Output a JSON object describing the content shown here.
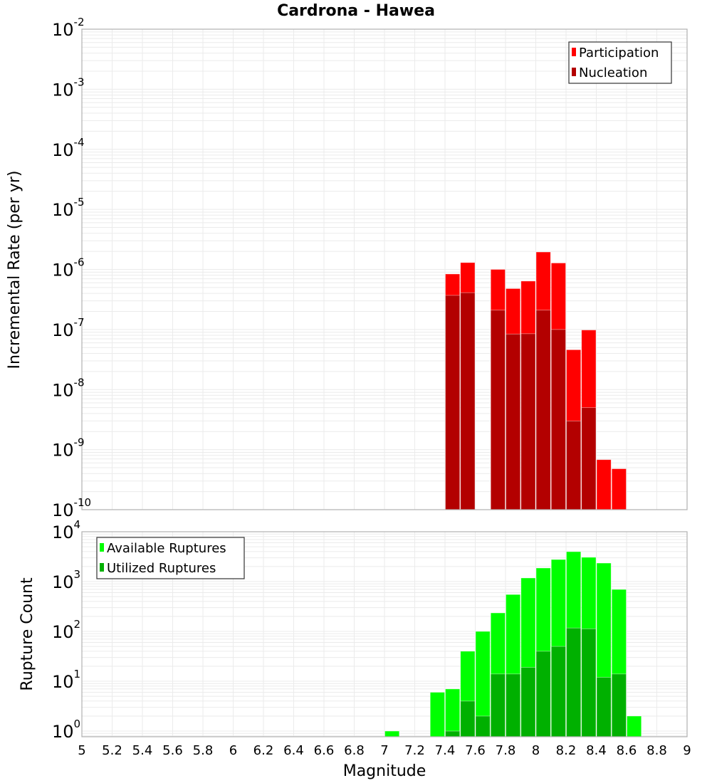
{
  "chart_data": [
    {
      "type": "bar",
      "title": "Cardrona - Hawea",
      "xlabel": "Magnitude",
      "ylabel": "Incremental Rate (per yr)",
      "yscale": "log",
      "ylim": [
        1e-10,
        0.01
      ],
      "xlim": [
        5,
        9
      ],
      "grid": true,
      "legend_position": "top-right",
      "ytick_exponents": [
        "-2",
        "-3",
        "-4",
        "-5",
        "-6",
        "-7",
        "-8",
        "-9",
        "-10"
      ],
      "bin_width": 0.1,
      "series": [
        {
          "name": "Participation",
          "color": "#ff0000",
          "x": [
            7.45,
            7.55,
            7.75,
            7.85,
            7.95,
            8.05,
            8.15,
            8.25,
            8.35,
            8.45,
            8.55
          ],
          "values": [
            8.4e-07,
            1.3e-06,
            1e-06,
            4.8e-07,
            6.4e-07,
            1.95e-06,
            1.28e-06,
            4.6e-08,
            9.8e-08,
            6.8e-10,
            4.8e-10
          ]
        },
        {
          "name": "Nucleation",
          "color": "#b30000",
          "x": [
            7.45,
            7.55,
            7.75,
            7.85,
            7.95,
            8.05,
            8.15,
            8.25,
            8.35
          ],
          "values": [
            3.7e-07,
            4.1e-07,
            2.1e-07,
            8.4e-08,
            8.5e-08,
            2.1e-07,
            1e-07,
            3e-09,
            5e-09
          ]
        }
      ]
    },
    {
      "type": "bar",
      "xlabel": "Magnitude",
      "ylabel": "Rupture Count",
      "yscale": "log",
      "ylim": [
        0.77,
        10000.0
      ],
      "xlim": [
        5,
        9
      ],
      "grid": true,
      "legend_position": "top-left",
      "ytick_exponents": [
        "4",
        "3",
        "2",
        "1",
        "0"
      ],
      "xticks": [
        "5",
        "5.2",
        "5.4",
        "5.6",
        "5.8",
        "6",
        "6.2",
        "6.4",
        "6.6",
        "6.8",
        "7",
        "7.2",
        "7.4",
        "7.6",
        "7.8",
        "8",
        "8.2",
        "8.4",
        "8.6",
        "8.8",
        "9"
      ],
      "bin_width": 0.1,
      "series": [
        {
          "name": "Available Ruptures",
          "color": "#00ff00",
          "x": [
            7.05,
            7.35,
            7.45,
            7.55,
            7.65,
            7.75,
            7.85,
            7.95,
            8.05,
            8.15,
            8.25,
            8.35,
            8.45,
            8.55,
            8.65
          ],
          "values": [
            1,
            6,
            7,
            40,
            100,
            235,
            550,
            1180,
            1870,
            2770,
            3980,
            3070,
            2350,
            695,
            2
          ]
        },
        {
          "name": "Utilized Ruptures",
          "color": "#00b000",
          "x": [
            7.45,
            7.55,
            7.65,
            7.75,
            7.85,
            7.95,
            8.05,
            8.15,
            8.25,
            8.35,
            8.45,
            8.55
          ],
          "values": [
            1,
            4,
            2,
            14,
            14,
            19,
            40,
            50,
            117,
            113,
            12,
            14
          ]
        }
      ]
    }
  ]
}
